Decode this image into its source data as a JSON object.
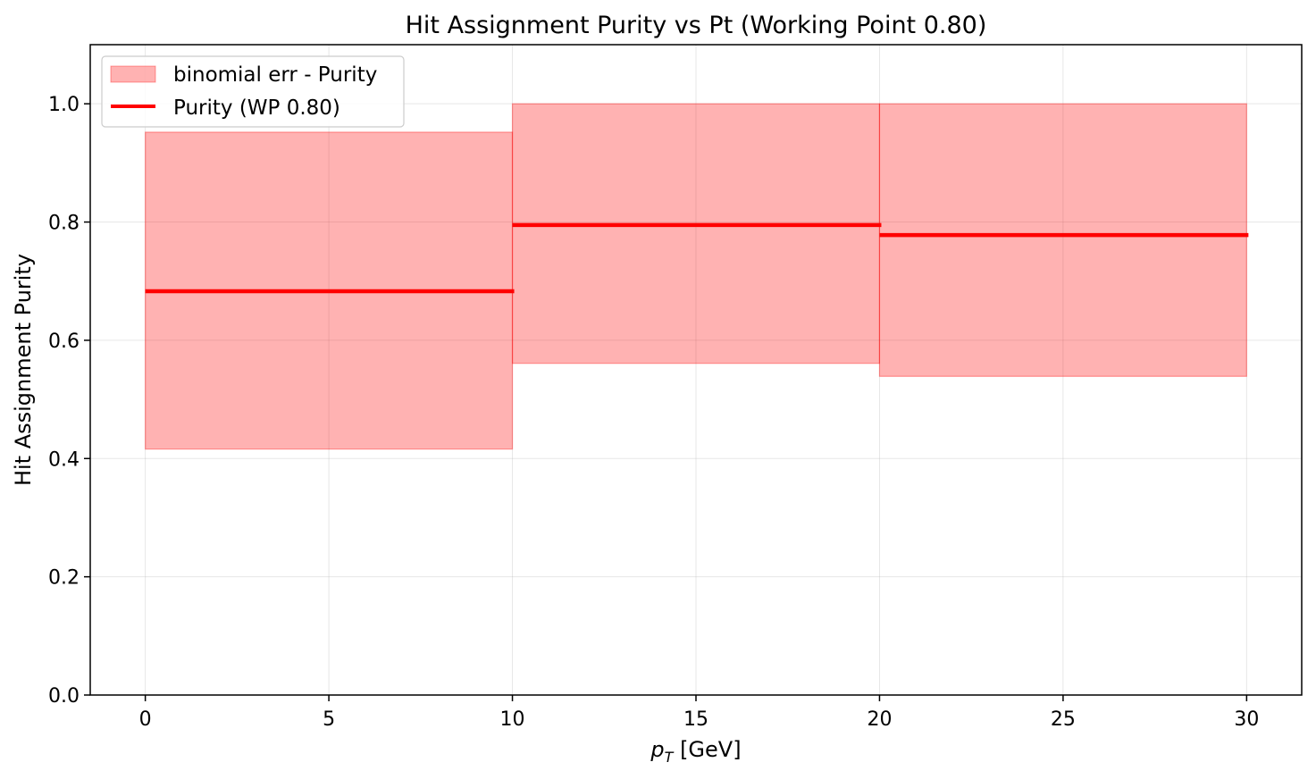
{
  "chart_data": {
    "type": "step",
    "title": "Hit Assignment Purity vs Pt (Working Point 0.80)",
    "xlabel_main": "p",
    "xlabel_sub": "T",
    "xlabel_unit": " [GeV]",
    "ylabel": "Hit Assignment Purity",
    "xlim": [
      -1.5,
      31.5
    ],
    "ylim": [
      0.0,
      1.1
    ],
    "x_ticks": [
      0,
      5,
      10,
      15,
      20,
      25,
      30
    ],
    "x_tick_labels": [
      "0",
      "5",
      "10",
      "15",
      "20",
      "25",
      "30"
    ],
    "y_ticks": [
      0.0,
      0.2,
      0.4,
      0.6,
      0.8,
      1.0
    ],
    "y_tick_labels": [
      "0.0",
      "0.2",
      "0.4",
      "0.6",
      "0.8",
      "1.0"
    ],
    "grid": true,
    "legend_position": "top-left",
    "bins": [
      {
        "x_low": 0,
        "x_high": 10,
        "purity": 0.683,
        "err_low": 0.416,
        "err_high": 0.952
      },
      {
        "x_low": 10,
        "x_high": 20,
        "purity": 0.795,
        "err_low": 0.561,
        "err_high": 1.0
      },
      {
        "x_low": 20,
        "x_high": 30,
        "purity": 0.778,
        "err_low": 0.539,
        "err_high": 1.0
      }
    ],
    "series": [
      {
        "name": "binomial err - Purity",
        "kind": "band",
        "color": "#ff0000",
        "alpha": 0.3
      },
      {
        "name": "Purity (WP 0.80)",
        "kind": "step",
        "color": "#ff0000"
      }
    ]
  }
}
